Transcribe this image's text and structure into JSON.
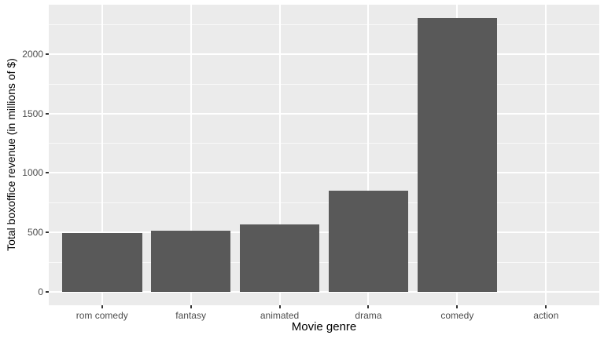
{
  "chart_data": {
    "type": "bar",
    "title": "",
    "categories": [
      "rom comedy",
      "fantasy",
      "animated",
      "drama",
      "comedy",
      "action"
    ],
    "values": [
      490,
      510,
      565,
      850,
      2300,
      0
    ],
    "xlabel": "Movie genre",
    "ylabel": "Total boxoffice revenue (in millions of $)",
    "ylim": [
      -115,
      2415
    ],
    "yticks": [
      0,
      500,
      1000,
      1500,
      2000
    ],
    "yminor": [
      250,
      750,
      1250,
      1750,
      2250
    ],
    "grid": true,
    "legend": false,
    "style": {
      "bar_color": "#595959",
      "panel_bg": "#EBEBEB",
      "grid_major_color": "#FFFFFF",
      "grid_minor_color": "#FFFFFF",
      "tick_mark_color": "#333333",
      "axis_text_color": "#4D4D4D",
      "axis_title_color": "#000000",
      "background": "#FFFFFF"
    }
  }
}
